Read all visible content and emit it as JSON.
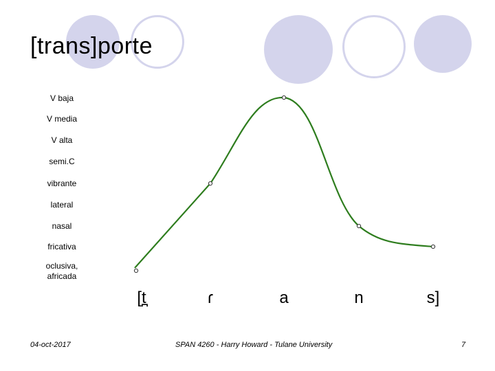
{
  "slide": {
    "title": "[trans]porte"
  },
  "chart_data": {
    "type": "line",
    "y_categories": [
      "oclusiva, africada",
      "fricativa",
      "nasal",
      "lateral",
      "vibrante",
      "semi.C",
      "V alta",
      "V media",
      "V baja"
    ],
    "y_labels": [
      {
        "text": "V baja"
      },
      {
        "text": "V media"
      },
      {
        "text": "V alta"
      },
      {
        "text": "semi.C"
      },
      {
        "text": "vibrante"
      },
      {
        "text": "lateral"
      },
      {
        "text": "nasal"
      },
      {
        "text": "fricativa"
      },
      {
        "text": "oclusiva,\nafricada"
      }
    ],
    "x_segments": [
      "[t̪",
      "ɾ",
      "a",
      "n",
      "s]"
    ],
    "points": [
      {
        "segment": "[t̪",
        "level": "oclusiva, africada"
      },
      {
        "segment": "ɾ",
        "level": "vibrante"
      },
      {
        "segment": "a",
        "level": "V baja"
      },
      {
        "segment": "n",
        "level": "nasal"
      },
      {
        "segment": "s]",
        "level": "fricativa"
      }
    ],
    "line_color": "#2e7d1e"
  },
  "footer": {
    "date": "04-oct-2017",
    "course": "SPAN 4260 - Harry Howard - Tulane University",
    "page": "7"
  }
}
